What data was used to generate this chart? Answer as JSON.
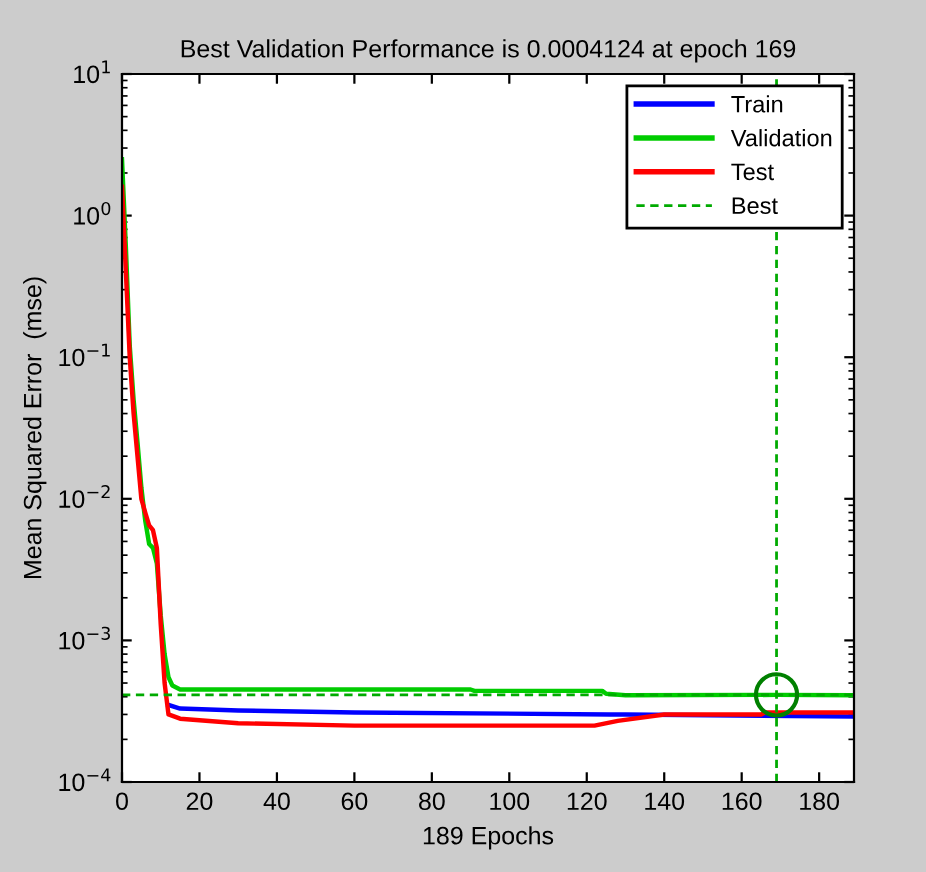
{
  "chart_data": {
    "type": "line",
    "title": "Best Validation Performance is 0.0004124 at epoch 169",
    "xlabel": "189 Epochs",
    "ylabel": "Mean Squared Error  (mse)",
    "log": "y",
    "xlim": [
      0,
      189
    ],
    "xticks": [
      0,
      20,
      40,
      60,
      80,
      100,
      120,
      140,
      160,
      180
    ],
    "ylim": [
      0.0001,
      10
    ],
    "yticks": [
      {
        "value": 0.0001,
        "label": "10$^{−4}$"
      },
      {
        "value": 0.001,
        "label": "10$^{−3}$"
      },
      {
        "value": 0.01,
        "label": "10$^{−2}$"
      },
      {
        "value": 0.1,
        "label": "10$^{−1}$"
      },
      {
        "value": 1,
        "label": "10$^{0}$"
      },
      {
        "value": 10,
        "label": "10$^{1}$"
      }
    ],
    "grid": false,
    "legend": "top right",
    "line_style": "solid",
    "marker": "none",
    "series": [
      {
        "name": "Train",
        "color": "#0000ff",
        "x": [
          12,
          15,
          30,
          60,
          126,
          130,
          189
        ],
        "values": [
          0.00035,
          0.00033,
          0.00032,
          0.00031,
          0.0003,
          0.0003,
          0.00029
        ]
      },
      {
        "name": "Validation",
        "color": "#00cc00",
        "x": [
          0,
          1,
          2,
          3,
          4,
          5,
          6,
          7,
          8,
          9,
          10,
          11,
          12,
          13,
          15,
          90,
          91,
          124,
          125,
          130,
          169,
          189
        ],
        "values": [
          2.5,
          0.6,
          0.12,
          0.05,
          0.025,
          0.012,
          0.007,
          0.0048,
          0.0045,
          0.0035,
          0.0015,
          0.0008,
          0.00055,
          0.00048,
          0.00045,
          0.00045,
          0.00044,
          0.00044,
          0.00042,
          0.00041,
          0.0004124,
          0.00041
        ]
      },
      {
        "name": "Test",
        "color": "#ff0000",
        "x": [
          0,
          1,
          2,
          3,
          4,
          5,
          6,
          7,
          8,
          9,
          10,
          11,
          12,
          15,
          30,
          60,
          122,
          128,
          140,
          165,
          166,
          189
        ],
        "values": [
          1.6,
          0.4,
          0.1,
          0.04,
          0.02,
          0.01,
          0.008,
          0.0065,
          0.006,
          0.0045,
          0.0013,
          0.0005,
          0.0003,
          0.00028,
          0.00026,
          0.00025,
          0.00025,
          0.00027,
          0.0003,
          0.0003,
          0.00031,
          0.00031
        ]
      },
      {
        "type": "scatter",
        "color": "#008000",
        "marker": "circle",
        "x": [
          169
        ],
        "values": [
          0.0004124
        ]
      }
    ],
    "ref_lines": [
      {
        "axis": "y",
        "value": 0.0004124,
        "label": "Best",
        "color": "#00aa00",
        "line_style": "dashed"
      },
      {
        "axis": "x",
        "value": 169,
        "color": "#00aa00",
        "line_style": "dashed"
      }
    ]
  }
}
